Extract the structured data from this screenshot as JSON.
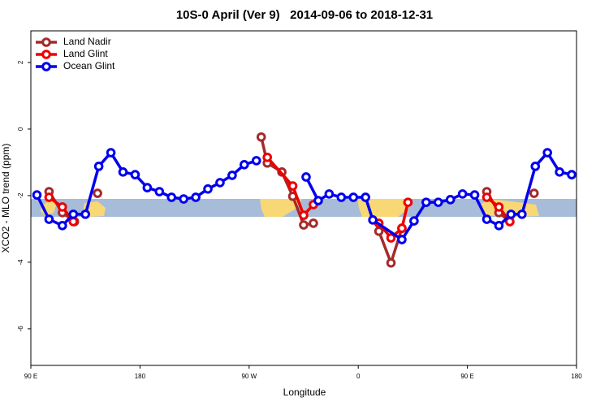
{
  "chart_data": {
    "type": "line",
    "title": "10S-0 April (Ver 9)   2014-09-06 to 2018-12-31",
    "x_label": "Longitude",
    "y_label": "XCO2 - MLO trend (ppm)",
    "xlim": [
      90,
      540
    ],
    "xticks": [
      {
        "value": 90,
        "label": "90 E"
      },
      180,
      {
        "value": 270,
        "label": "90 W"
      },
      {
        "value": 360,
        "label": "0"
      },
      {
        "value": 450,
        "label": "90 E"
      },
      {
        "value": 540,
        "label": "180"
      }
    ],
    "ylim": [
      -7.1,
      2.95
    ],
    "yticks": [
      -6,
      -4,
      -2,
      0,
      2
    ],
    "legend": "top-left",
    "series": [
      {
        "name": "Land Nadir",
        "color": "#a52a2a",
        "x": [
          105,
          116,
          126,
          135,
          145,
          210,
          280,
          285,
          297,
          306,
          315,
          323,
          350,
          377,
          387,
          396,
          430,
          466,
          476,
          485,
          495,
          505
        ],
        "values": [
          -1.88,
          -2.51,
          -2.78,
          null,
          -1.93,
          null,
          -0.24,
          -1.02,
          -1.29,
          -2.02,
          -2.88,
          -2.83,
          null,
          -3.07,
          -4.02,
          -2.98,
          null,
          -1.88,
          -2.51,
          -2.78,
          null,
          -1.93
        ]
      },
      {
        "name": "Land Glint",
        "color": "#ee0000",
        "x": [
          105,
          116,
          125,
          200,
          285,
          306,
          315,
          323,
          350,
          377,
          387,
          396,
          401,
          430,
          466,
          476,
          485
        ],
        "values": [
          -2.05,
          -2.34,
          -2.78,
          null,
          -0.85,
          -1.71,
          -2.59,
          -2.27,
          null,
          -2.83,
          -3.27,
          -2.98,
          -2.2,
          null,
          -2.05,
          -2.34,
          -2.78
        ]
      },
      {
        "name": "Ocean Glint",
        "color": "#0000ee",
        "x": [
          95,
          105,
          116,
          125,
          135,
          146,
          156,
          166,
          176,
          186,
          196,
          206,
          216,
          226,
          236,
          246,
          256,
          266,
          276,
          296,
          317,
          327,
          336,
          346,
          356,
          366,
          372,
          396,
          406,
          416,
          426,
          436,
          446,
          456,
          466,
          476,
          486,
          495,
          506,
          516,
          526,
          536
        ],
        "values": [
          -1.98,
          -2.71,
          -2.9,
          -2.56,
          -2.56,
          -1.12,
          -0.71,
          -1.29,
          -1.37,
          -1.76,
          -1.88,
          -2.05,
          -2.1,
          -2.05,
          -1.8,
          -1.61,
          -1.39,
          -1.07,
          -0.95,
          null,
          -1.44,
          -2.15,
          -1.95,
          -2.05,
          -2.05,
          -2.05,
          -2.73,
          -3.32,
          -2.76,
          -2.2,
          -2.2,
          -2.12,
          -1.95,
          -1.98,
          -2.71,
          -2.9,
          -2.56,
          -2.56,
          -1.12,
          -0.71,
          -1.29,
          -1.37
        ]
      }
    ]
  }
}
